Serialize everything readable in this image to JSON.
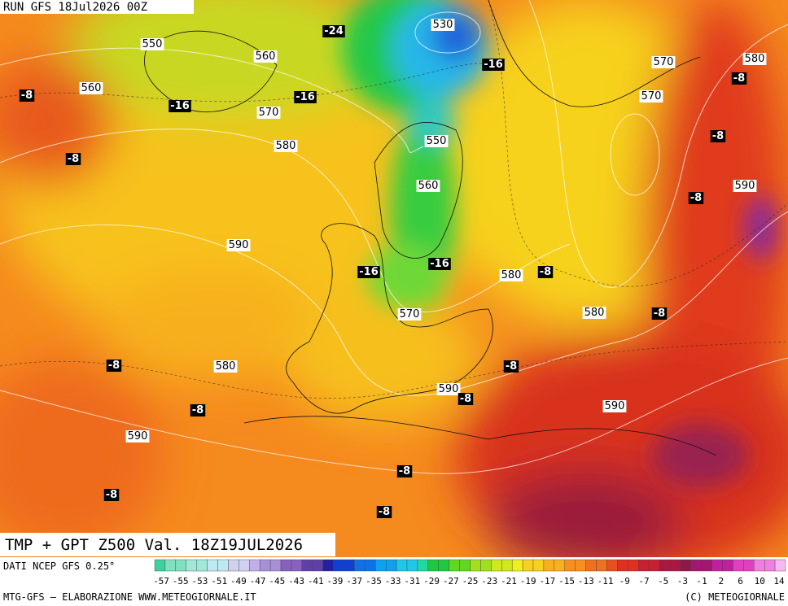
{
  "header": "RUN GFS 18Jul2026 00Z",
  "map_labels": {
    "geopotential": [
      "550",
      "560",
      "560",
      "570",
      "580",
      "530",
      "550",
      "560",
      "570",
      "570",
      "580",
      "590",
      "590",
      "580",
      "570",
      "580",
      "580",
      "590",
      "590",
      "590"
    ],
    "temperature": [
      "-24",
      "-16",
      "-8",
      "-16",
      "-16",
      "-8",
      "-8",
      "-8",
      "-8",
      "-16",
      "-16",
      "-8",
      "-8",
      "-8",
      "-8",
      "-8",
      "-8",
      "-8",
      "-8",
      "-8"
    ]
  },
  "title": "TMP + GPT Z500 Val. 18Z19JUL2026",
  "data_source": "DATI NCEP GFS 0.25°",
  "colorbar_ticks": [
    "-57",
    "-55",
    "-53",
    "-51",
    "-49",
    "-47",
    "-45",
    "-43",
    "-41",
    "-39",
    "-37",
    "-35",
    "-33",
    "-31",
    "-29",
    "-27",
    "-25",
    "-23",
    "-21",
    "-19",
    "-17",
    "-15",
    "-13",
    "-11",
    "-9",
    "-7",
    "-5",
    "-3",
    "-1",
    "2",
    "6",
    "10",
    "14"
  ],
  "footer": {
    "left": "MTG-GFS – ELABORAZIONE WWW.METEOGIORNALE.IT",
    "right": "(C) METEOGIORNALE"
  }
}
